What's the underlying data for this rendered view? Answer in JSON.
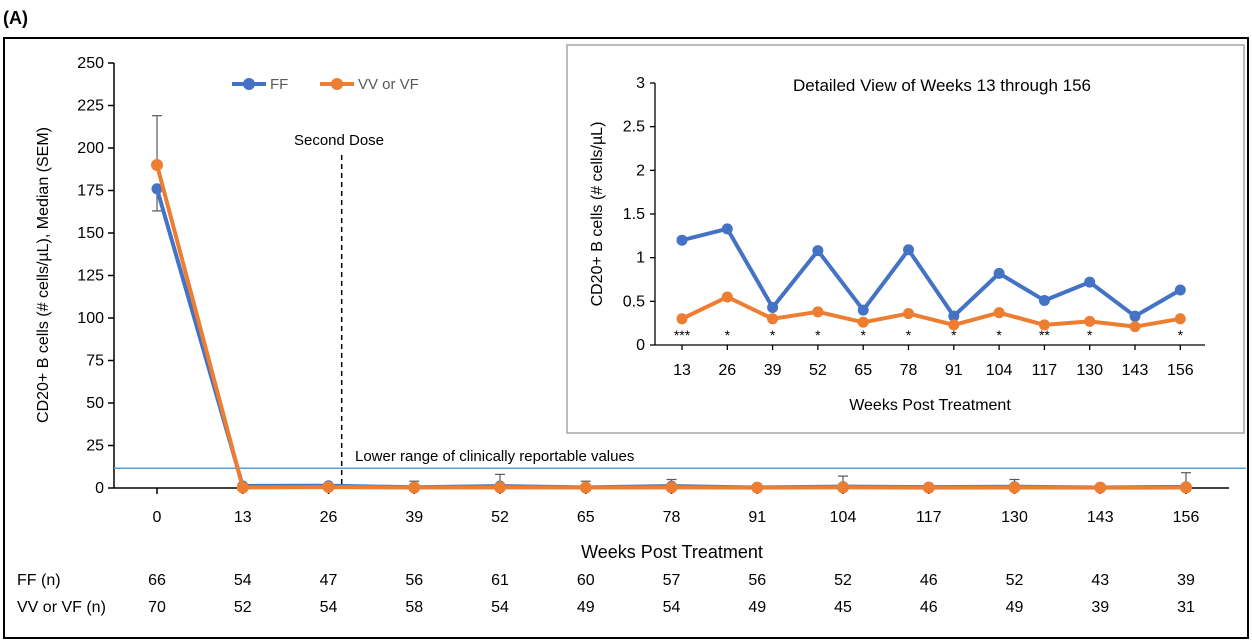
{
  "panel_label": "(A)",
  "colors": {
    "ff": "#4472C4",
    "vv": "#ED7D31",
    "threshold": "#5B9BD5",
    "axis": "#000000"
  },
  "chart_data": [
    {
      "type": "line",
      "title": "",
      "xlabel": "Weeks Post Treatment",
      "ylabel": "CD20+ B cells (# cells/µL), Median (SEM)",
      "categories": [
        "0",
        "13",
        "26",
        "39",
        "52",
        "65",
        "78",
        "91",
        "104",
        "117",
        "130",
        "143",
        "156"
      ],
      "ylim": [
        0,
        250
      ],
      "yticks": [
        "0",
        "25",
        "50",
        "75",
        "100",
        "125",
        "150",
        "175",
        "200",
        "225",
        "250"
      ],
      "legend_position": "top-center",
      "series": [
        {
          "name": "FF",
          "values": [
            176,
            1.2,
            1.33,
            0.43,
            1.08,
            0.4,
            1.09,
            0.33,
            0.82,
            0.51,
            0.72,
            0.33,
            0.63
          ],
          "sem_upper": [
            null,
            null,
            null,
            4,
            8,
            4,
            5,
            null,
            7,
            null,
            5,
            null,
            9
          ],
          "sem_lower": [
            163,
            null,
            null,
            null,
            null,
            null,
            null,
            null,
            null,
            null,
            null,
            null,
            null
          ]
        },
        {
          "name": "VV or VF",
          "values": [
            190,
            0.3,
            0.55,
            0.3,
            0.38,
            0.26,
            0.36,
            0.23,
            0.37,
            0.23,
            0.27,
            0.21,
            0.3
          ],
          "sem_upper": [
            219,
            null,
            null,
            null,
            null,
            null,
            null,
            null,
            null,
            null,
            null,
            null,
            null
          ]
        }
      ],
      "second_dose_label": "Second Dose",
      "second_dose_x": 28,
      "threshold_label": "Lower range of clinically reportable values",
      "threshold_value": 12.5,
      "n_table": {
        "rows": [
          {
            "label": "FF (n)",
            "values": [
              "66",
              "54",
              "47",
              "56",
              "61",
              "60",
              "57",
              "56",
              "52",
              "46",
              "52",
              "43",
              "39"
            ]
          },
          {
            "label": "VV or VF (n)",
            "values": [
              "70",
              "52",
              "54",
              "58",
              "54",
              "49",
              "54",
              "49",
              "45",
              "46",
              "49",
              "39",
              "31"
            ]
          }
        ]
      }
    },
    {
      "type": "line",
      "title": "Detailed View of Weeks 13 through 156",
      "xlabel": "Weeks Post Treatment",
      "ylabel": "CD20+ B cells (# cells/µL)",
      "categories": [
        "13",
        "26",
        "39",
        "52",
        "65",
        "78",
        "91",
        "104",
        "117",
        "130",
        "143",
        "156"
      ],
      "ylim": [
        0,
        3
      ],
      "yticks": [
        "0",
        "0.5",
        "1",
        "1.5",
        "2",
        "2.5",
        "3"
      ],
      "series": [
        {
          "name": "FF",
          "values": [
            1.2,
            1.33,
            0.43,
            1.08,
            0.4,
            1.09,
            0.33,
            0.82,
            0.51,
            0.72,
            0.33,
            0.63
          ]
        },
        {
          "name": "VV or VF",
          "values": [
            0.3,
            0.55,
            0.3,
            0.38,
            0.26,
            0.36,
            0.23,
            0.37,
            0.23,
            0.27,
            0.21,
            0.3
          ]
        }
      ],
      "significance": [
        "***",
        "*",
        "*",
        "*",
        "*",
        "*",
        "*",
        "*",
        "**",
        "*",
        "",
        "*"
      ]
    }
  ]
}
